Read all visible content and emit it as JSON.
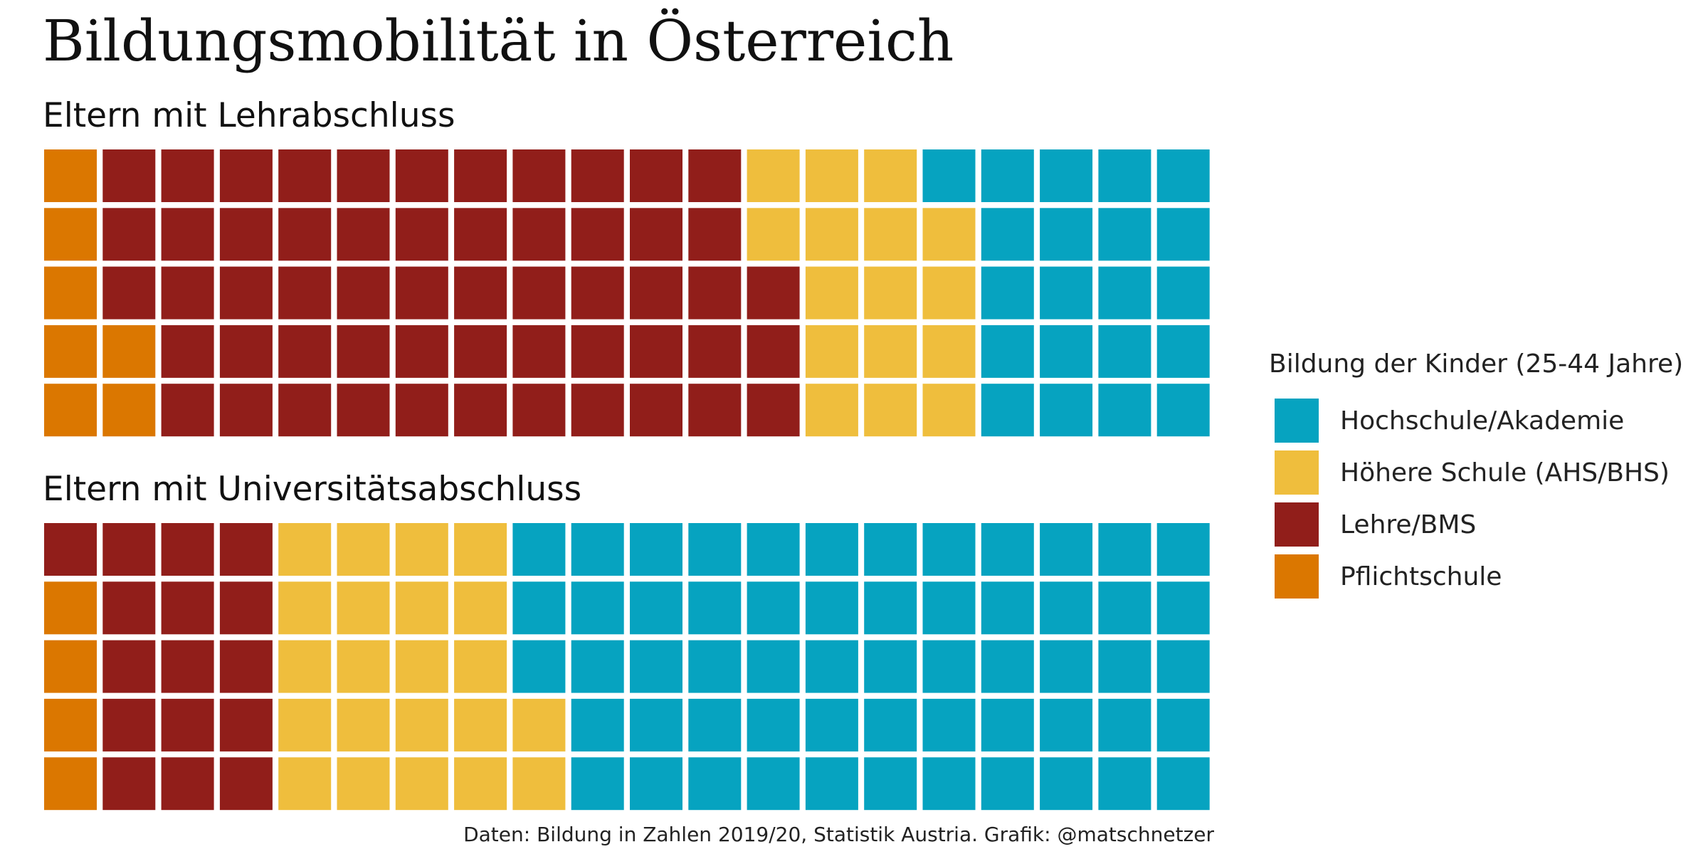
{
  "title": "Bildungsmobilität in Österreich",
  "caption": "Daten: Bildung in Zahlen 2019/20, Statistik Austria. Grafik: @matschnetzer",
  "chart_data": {
    "type": "waffle",
    "units_per_panel": 100,
    "grid_rows": 5,
    "grid_columns": 20,
    "fill_order": "column-wise, bottom-to-top within each column, left-to-right",
    "legend": {
      "title": "Bildung der Kinder (25-44 Jahre)",
      "placement": "right",
      "entries": [
        {
          "key": "hochschule",
          "label": "Hochschule/Akademie",
          "color": "#06A3C0"
        },
        {
          "key": "hoehere",
          "label": "Höhere Schule (AHS/BHS)",
          "color": "#EFBE3D"
        },
        {
          "key": "lehre",
          "label": "Lehre/BMS",
          "color": "#911E1A"
        },
        {
          "key": "pflicht",
          "label": "Pflichtschule",
          "color": "#DB7700"
        }
      ]
    },
    "panels": [
      {
        "title": "Eltern mit Lehrabschluss",
        "category_order": [
          "pflicht",
          "lehre",
          "hoehere",
          "hochschule"
        ],
        "counts": [
          7,
          56,
          16,
          21
        ]
      },
      {
        "title": "Eltern mit Universitätsabschluss",
        "category_order": [
          "pflicht",
          "lehre",
          "hoehere",
          "hochschule"
        ],
        "counts": [
          4,
          16,
          22,
          58
        ]
      }
    ]
  }
}
